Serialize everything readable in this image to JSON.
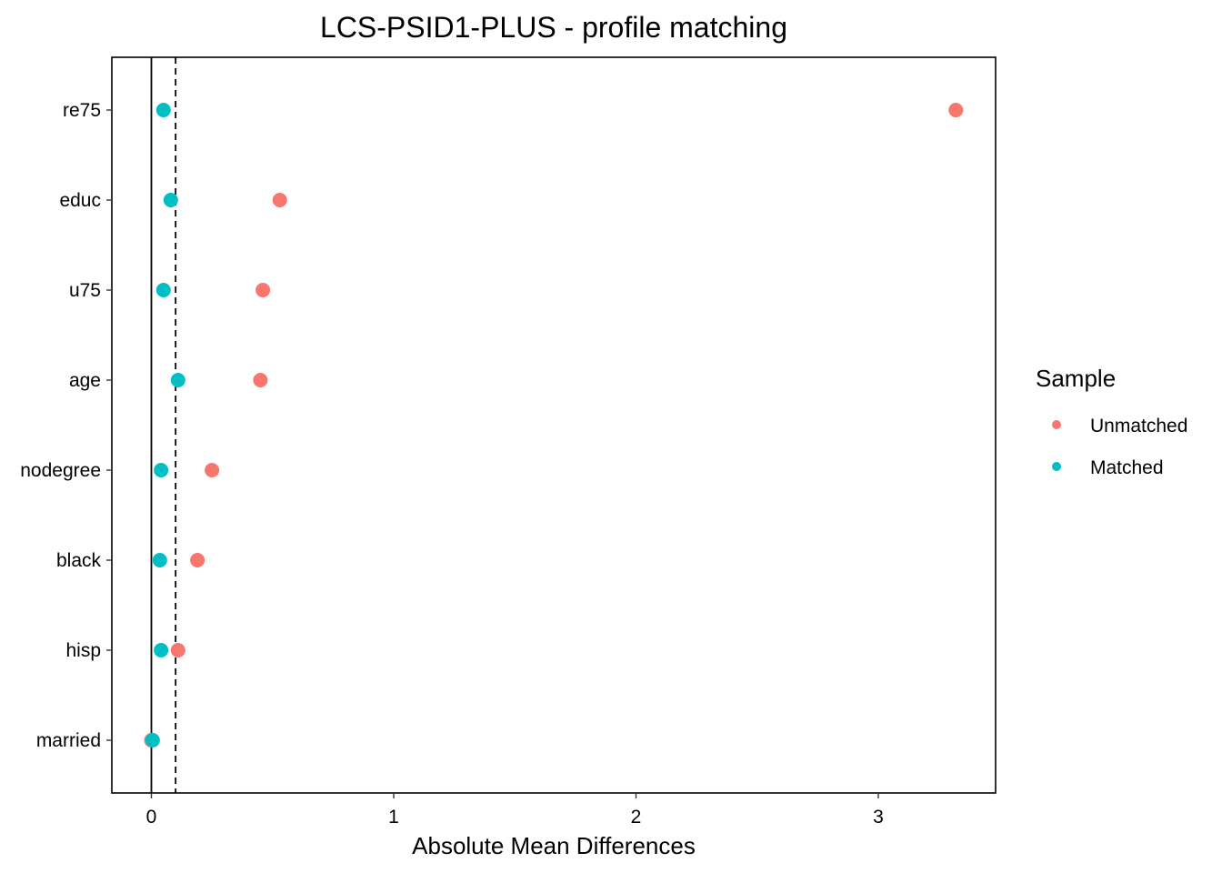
{
  "chart_data": {
    "type": "scatter",
    "title": "LCS-PSID1-PLUS - profile matching",
    "xlabel": "Absolute Mean Differences",
    "ylabel": "",
    "xlim": [
      -0.15,
      3.5
    ],
    "x_ticks": [
      0,
      1,
      2,
      3
    ],
    "x_tick_labels": [
      "0",
      "1",
      "2",
      "3"
    ],
    "categories": [
      "re75",
      "educ",
      "u75",
      "age",
      "nodegree",
      "black",
      "hisp",
      "married"
    ],
    "reference_lines": [
      {
        "x": 0,
        "style": "solid"
      },
      {
        "x": 0.1,
        "style": "dashed"
      }
    ],
    "series": [
      {
        "name": "Unmatched",
        "color": "#F8766D",
        "values": [
          3.32,
          0.53,
          0.46,
          0.45,
          0.25,
          0.19,
          0.11,
          0.0
        ]
      },
      {
        "name": "Matched",
        "color": "#00BFC4",
        "values": [
          0.05,
          0.08,
          0.05,
          0.11,
          0.04,
          0.035,
          0.04,
          0.005
        ]
      }
    ],
    "legend": {
      "title": "Sample",
      "position": "right"
    },
    "grid": false
  }
}
